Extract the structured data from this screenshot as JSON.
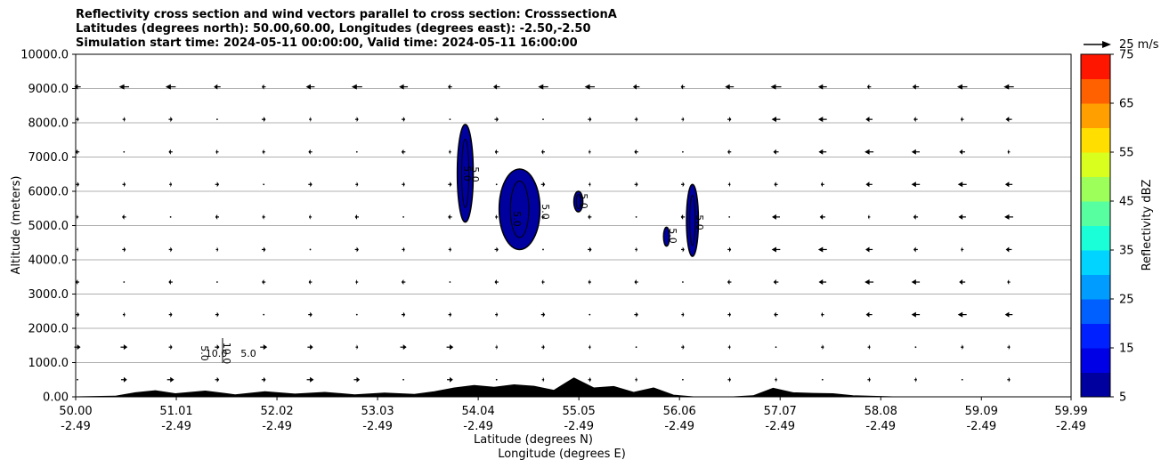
{
  "chart_data": {
    "type": "contourf",
    "title_lines": [
      "Reflectivity cross section and wind vectors parallel to cross section: CrosssectionA",
      "Latitudes (degrees north): 50.00,60.00, Longitudes (degrees east): -2.50,-2.50",
      "Simulation start time: 2024-05-11 00:00:00, Valid time: 2024-05-11 16:00:00"
    ],
    "ylabel": "Altitude (meters)",
    "xlabel_lat": "Latitude (degrees N)",
    "xlabel_lon": "Longitude (degrees E)",
    "ylim": [
      0,
      10000
    ],
    "xlim": [
      50.0,
      59.99
    ],
    "y_ticks": [
      "0.00",
      "1000.0",
      "2000.0",
      "3000.0",
      "4000.0",
      "5000.0",
      "6000.0",
      "7000.0",
      "8000.0",
      "9000.0",
      "10000.0"
    ],
    "y_tick_values": [
      0,
      1000,
      2000,
      3000,
      4000,
      5000,
      6000,
      7000,
      8000,
      9000,
      10000
    ],
    "x_ticks_lat": [
      "50.00",
      "51.01",
      "52.02",
      "53.03",
      "54.04",
      "55.05",
      "56.06",
      "57.07",
      "58.08",
      "59.09",
      "59.99"
    ],
    "x_ticks_lon": [
      "-2.49",
      "-2.49",
      "-2.49",
      "-2.49",
      "-2.49",
      "-2.49",
      "-2.49",
      "-2.49",
      "-2.49",
      "-2.49",
      "-2.49"
    ],
    "x_tick_values": [
      50.0,
      51.01,
      52.02,
      53.03,
      54.04,
      55.05,
      56.06,
      57.07,
      58.08,
      59.09,
      59.99
    ],
    "grid": "horizontal",
    "colorbar": {
      "label": "Reflectivity dBZ",
      "levels": [
        5,
        10,
        15,
        20,
        25,
        30,
        35,
        40,
        45,
        50,
        55,
        60,
        65,
        70,
        75
      ],
      "tick_labels": [
        "5",
        "15",
        "25",
        "35",
        "45",
        "55",
        "65",
        "75"
      ],
      "colors": [
        "#00009f",
        "#0000e6",
        "#0020ff",
        "#0060ff",
        "#009cff",
        "#00d4ff",
        "#1affd8",
        "#58ffa0",
        "#9cff5a",
        "#d8ff1e",
        "#ffde00",
        "#ffa000",
        "#ff6000",
        "#ff1600",
        "#a80000"
      ]
    },
    "wind_key_label": "25 m/s",
    "contour_labels": [
      "5.0",
      "5.0",
      "5.0",
      "5.0",
      "5.0",
      "5.0",
      "5.0",
      "5.0",
      "10.0",
      "10.0",
      "5.0"
    ],
    "reflectivity_cells": [
      {
        "lat_range": [
          53.83,
          53.99
        ],
        "alt_range": [
          5100,
          7950
        ],
        "dbz": 5
      },
      {
        "lat_range": [
          54.25,
          54.66
        ],
        "alt_range": [
          4300,
          6650
        ],
        "dbz": 5
      },
      {
        "lat_range": [
          55.0,
          55.09
        ],
        "alt_range": [
          5400,
          6000
        ],
        "dbz": 5
      },
      {
        "lat_range": [
          55.9,
          55.96
        ],
        "alt_range": [
          4400,
          4950
        ],
        "dbz": 5
      },
      {
        "lat_range": [
          56.13,
          56.25
        ],
        "alt_range": [
          4100,
          6200
        ],
        "dbz": 5
      }
    ],
    "terrain_profile_lat": [
      50.0,
      50.4,
      50.6,
      50.8,
      51.0,
      51.3,
      51.6,
      51.9,
      52.2,
      52.5,
      52.8,
      53.1,
      53.4,
      53.6,
      53.8,
      54.0,
      54.2,
      54.4,
      54.6,
      54.8,
      55.0,
      55.2,
      55.4,
      55.6,
      55.8,
      56.0,
      56.2,
      56.4,
      56.6,
      56.8,
      57.0,
      57.2,
      57.4,
      57.6,
      57.8,
      58.2,
      59.99
    ],
    "terrain_profile_alt": [
      0,
      20,
      120,
      180,
      90,
      170,
      60,
      150,
      80,
      130,
      60,
      110,
      70,
      150,
      260,
      330,
      280,
      350,
      310,
      190,
      550,
      260,
      300,
      130,
      260,
      50,
      0,
      0,
      0,
      30,
      250,
      120,
      100,
      90,
      30,
      0,
      0
    ]
  }
}
